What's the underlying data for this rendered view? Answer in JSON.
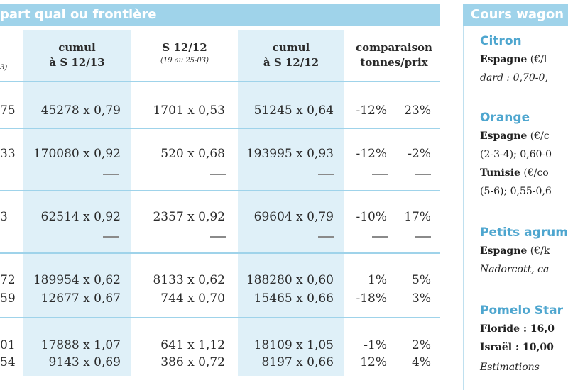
{
  "left_header": {
    "title": "part quai ou frontière"
  },
  "right_header": {
    "title": "Cours wagon"
  },
  "columns": [
    {
      "line1": "cumul",
      "line2": "à S 12/13",
      "sub": ""
    },
    {
      "line1": "S 12/12",
      "line2": "",
      "sub": "(19 au 25-03)"
    },
    {
      "line1": "cumul",
      "line2": "à S 12/12",
      "sub": ""
    },
    {
      "line1": "comparaison",
      "line2": "tonnes/prix",
      "sub": ""
    }
  ],
  "clipped_left_header_fragment": "3)",
  "rows": [
    {
      "lead": "75",
      "cumul13": "45278 x 0,79",
      "s12": "1701 x 0,53",
      "cumul12": "51245 x 0,64",
      "tonnes": "-12%",
      "prix": "23%",
      "dashes": false
    },
    {
      "lead": "33",
      "cumul13": "170080 x 0,92",
      "s12": "520 x 0,68",
      "cumul12": "193995 x 0,93",
      "tonnes": "-12%",
      "prix": "-2%",
      "dashes": true
    },
    {
      "lead": "3",
      "cumul13": "62514 x 0,92",
      "s12": "2357 x 0,92",
      "cumul12": "69604 x 0,79",
      "tonnes": "-10%",
      "prix": "17%",
      "dashes": true
    },
    {
      "lead": "72",
      "cumul13": "189954 x 0,62",
      "s12": "8133 x 0,62",
      "cumul12": "188280 x 0,60",
      "tonnes": "1%",
      "prix": "5%",
      "dashes": false
    },
    {
      "lead": "59",
      "cumul13": "12677 x 0,67",
      "s12": "744 x 0,70",
      "cumul12": "15465 x 0,66",
      "tonnes": "-18%",
      "prix": "3%",
      "dashes": false
    },
    {
      "lead": "01",
      "cumul13": "17888 x 1,07",
      "s12": "641 x 1,12",
      "cumul12": "18109 x 1,05",
      "tonnes": "-1%",
      "prix": "2%",
      "dashes": false
    },
    {
      "lead": "54",
      "cumul13": "9143 x 0,69",
      "s12": "386 x 0,72",
      "cumul12": "8197 x 0,66",
      "tonnes": "12%",
      "prix": "4%",
      "dashes": false
    }
  ],
  "sidebar": {
    "citron": {
      "title": "Citron",
      "line1_bold": "Espagne",
      "line1_rest": " (€/l",
      "line2": "dard : 0,70-0,"
    },
    "orange": {
      "title": "Orange",
      "line1_bold": "Espagne",
      "line1_rest": " (€/c",
      "line2": "(2-3-4); 0,60-0",
      "line3_bold": "Tunisie",
      "line3_rest": " (€/co",
      "line4": "(5-6); 0,55-0,6"
    },
    "petits_agrumes": {
      "title": "Petits agrum",
      "line1_bold": "Espagne",
      "line1_rest": " (€/k",
      "line2": "Nadorcott, ca"
    },
    "pomelo": {
      "title": "Pomelo Star",
      "line1": "Floride : 16,0",
      "line2": "Israël : 10,00",
      "line3": "Estimations"
    }
  }
}
